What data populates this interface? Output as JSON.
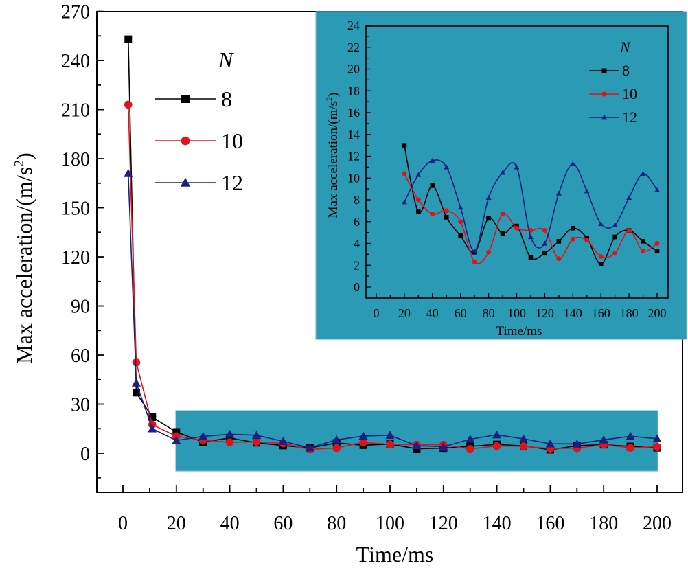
{
  "chart_data": [
    {
      "type": "line",
      "title": "",
      "xlabel": "Time/ms",
      "ylabel": "Max acceleration/(m/s2)",
      "ylabel_base": "Max acceleration/(m/s",
      "ylabel_sup": "2",
      "ylabel_close": ")",
      "xlim": [
        -8,
        205
      ],
      "ylim": [
        -20,
        270
      ],
      "xticks": [
        0,
        20,
        40,
        60,
        80,
        100,
        120,
        140,
        160,
        180,
        200
      ],
      "yticks": [
        0,
        30,
        60,
        90,
        120,
        150,
        180,
        210,
        240,
        270
      ],
      "legend_title": "N",
      "legend_position": "upper-left",
      "zoom_region": {
        "x": [
          20,
          200
        ],
        "y": [
          -10,
          26
        ]
      },
      "series": [
        {
          "name": "8",
          "color": "#000000",
          "marker": "square",
          "x": [
            2,
            5,
            11,
            20,
            30,
            40,
            50,
            60,
            70,
            80,
            90,
            100,
            110,
            120,
            130,
            140,
            150,
            160,
            170,
            180,
            190,
            200
          ],
          "y": [
            253,
            37,
            22,
            13,
            6.9,
            9.3,
            6.4,
            4.7,
            3.2,
            6.3,
            4.9,
            5.6,
            2.7,
            3.1,
            4.2,
            5.4,
            4.5,
            2.1,
            4.6,
            5.2,
            4.2,
            3.3
          ]
        },
        {
          "name": "10",
          "color": "#e0131b",
          "marker": "circle",
          "x": [
            2,
            5,
            11,
            20,
            30,
            40,
            50,
            60,
            70,
            80,
            90,
            100,
            110,
            120,
            130,
            140,
            150,
            160,
            170,
            180,
            190,
            200
          ],
          "y": [
            213,
            55.5,
            17.5,
            10.4,
            8.0,
            6.7,
            7.0,
            6.0,
            2.3,
            3.2,
            6.7,
            5.4,
            5.2,
            5.2,
            2.6,
            4.4,
            4.3,
            2.8,
            3.1,
            5.2,
            3.3,
            4.0
          ]
        },
        {
          "name": "12",
          "color": "#1b1f80",
          "marker": "triangle",
          "x": [
            2,
            5,
            11,
            20,
            30,
            40,
            50,
            60,
            70,
            80,
            90,
            100,
            110,
            120,
            130,
            140,
            150,
            160,
            170,
            180,
            190,
            200
          ],
          "y": [
            171,
            43,
            15,
            7.8,
            10.3,
            11.6,
            11.0,
            7.3,
            3.3,
            8.2,
            10.5,
            11.0,
            4.6,
            4.0,
            8.6,
            11.3,
            8.8,
            5.8,
            5.7,
            8.2,
            10.4,
            8.9
          ]
        }
      ]
    },
    {
      "type": "line",
      "title": "",
      "xlabel": "Time/ms",
      "ylabel": "Max acceleration/(m/s2)",
      "ylabel_base": "Max acceleration/(m/s",
      "ylabel_sup": "2",
      "ylabel_close": ")",
      "xlim": [
        -5,
        205
      ],
      "ylim": [
        -1,
        24
      ],
      "xticks": [
        0,
        20,
        40,
        60,
        80,
        100,
        120,
        140,
        160,
        180,
        200
      ],
      "yticks": [
        0,
        2,
        4,
        6,
        8,
        10,
        12,
        14,
        16,
        18,
        20,
        22,
        24
      ],
      "legend_title": "N",
      "legend_position": "top-right",
      "background": "#2b9ab5",
      "series": [
        {
          "name": "8",
          "color": "#000000",
          "marker": "square",
          "x": [
            20,
            30,
            40,
            50,
            60,
            70,
            80,
            90,
            100,
            110,
            120,
            130,
            140,
            150,
            160,
            170,
            180,
            190,
            200
          ],
          "y": [
            13.0,
            6.9,
            9.3,
            6.4,
            4.7,
            3.2,
            6.3,
            4.9,
            5.6,
            2.7,
            3.1,
            4.2,
            5.4,
            4.5,
            2.1,
            4.6,
            5.2,
            4.2,
            3.3
          ]
        },
        {
          "name": "10",
          "color": "#e0131b",
          "marker": "circle",
          "x": [
            20,
            30,
            40,
            50,
            60,
            70,
            80,
            90,
            100,
            110,
            120,
            130,
            140,
            150,
            160,
            170,
            180,
            190,
            200
          ],
          "y": [
            10.4,
            8.0,
            6.7,
            7.0,
            6.0,
            2.3,
            3.2,
            6.7,
            5.4,
            5.2,
            5.2,
            2.6,
            4.4,
            4.3,
            2.8,
            3.1,
            5.2,
            3.3,
            4.0
          ]
        },
        {
          "name": "12",
          "color": "#1b1f80",
          "marker": "triangle",
          "x": [
            20,
            30,
            40,
            50,
            60,
            70,
            80,
            90,
            100,
            110,
            120,
            130,
            140,
            150,
            160,
            170,
            180,
            190,
            200
          ],
          "y": [
            7.8,
            10.3,
            11.6,
            11.0,
            7.3,
            3.3,
            8.2,
            10.5,
            11.0,
            4.6,
            4.0,
            8.6,
            11.3,
            8.8,
            5.8,
            5.7,
            8.2,
            10.4,
            8.9
          ]
        }
      ]
    }
  ]
}
